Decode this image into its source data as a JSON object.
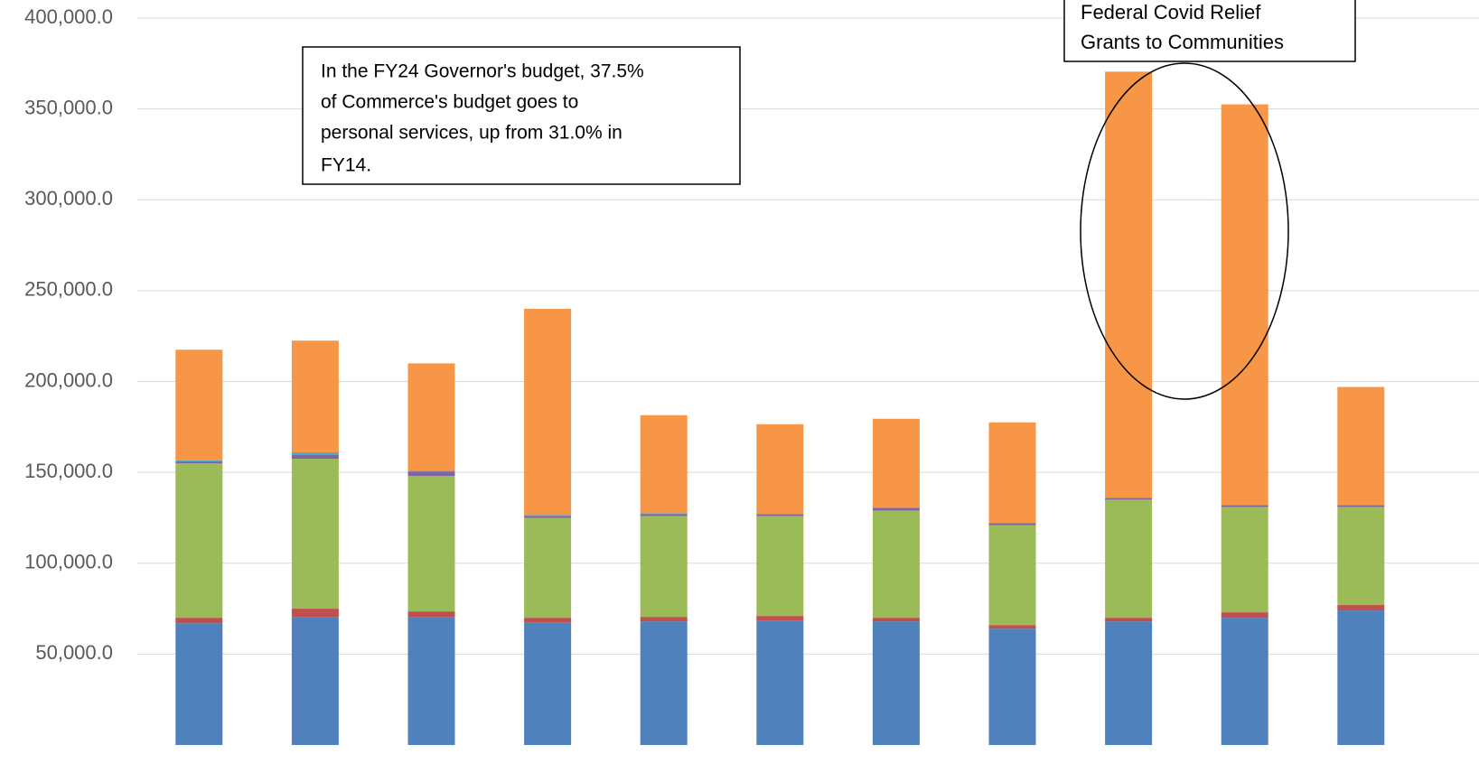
{
  "chart_data": {
    "type": "stacked_bar",
    "categories": [
      null,
      null,
      null,
      null,
      null,
      null,
      null,
      null,
      null,
      null,
      null
    ],
    "series": [
      {
        "color": "#4f81bd",
        "values": [
          67000,
          70500,
          70500,
          67500,
          68000,
          68500,
          68000,
          64000,
          68000,
          70000,
          74000
        ]
      },
      {
        "color": "#c0504d",
        "values": [
          3000,
          4500,
          3000,
          2500,
          2500,
          2500,
          2000,
          2000,
          2000,
          3000,
          3000
        ]
      },
      {
        "color": "#9bbb59",
        "values": [
          85000,
          82500,
          74500,
          55000,
          55500,
          55000,
          59000,
          55000,
          65000,
          58000,
          54000
        ]
      },
      {
        "color": "#8064a2",
        "values": [
          1000,
          2000,
          2500,
          1000,
          1000,
          1000,
          1500,
          1000,
          1000,
          1000,
          1000
        ]
      },
      {
        "color": "#4bacc6",
        "values": [
          500,
          1500,
          500,
          500,
          500,
          0,
          0,
          0,
          0,
          0,
          0
        ]
      },
      {
        "color": "#f79646",
        "values": [
          61000,
          61500,
          59000,
          113500,
          54000,
          49500,
          49000,
          55500,
          234500,
          220500,
          65000
        ]
      }
    ],
    "ylim": [
      0,
      400000
    ],
    "yticks": [
      {
        "value": 50000,
        "label": "50,000.0"
      },
      {
        "value": 100000,
        "label": "100,000.0"
      },
      {
        "value": 150000,
        "label": "150,000.0"
      },
      {
        "value": 200000,
        "label": "200,000.0"
      },
      {
        "value": 250000,
        "label": "250,000.0"
      },
      {
        "value": 300000,
        "label": "300,000.0"
      },
      {
        "value": 350000,
        "label": "350,000.0"
      },
      {
        "value": 400000,
        "label": "400,000.0"
      }
    ],
    "grid": true,
    "annotations": [
      {
        "lines": [
          "In the FY24 Governor's budget, 37.5%",
          "of Commerce's budget goes to",
          "personal services, up from 31.0% in",
          "FY14."
        ]
      },
      {
        "lines": [
          "Federal Covid Relief",
          "Grants to Communities"
        ]
      }
    ]
  }
}
